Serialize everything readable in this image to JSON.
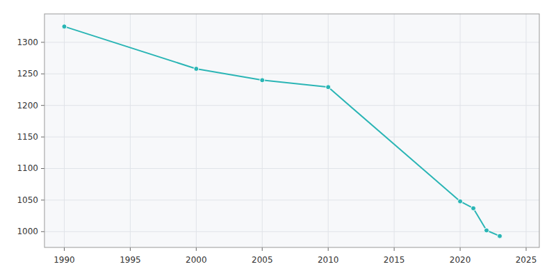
{
  "chart_data": {
    "type": "line",
    "x": [
      1990,
      2000,
      2005,
      2010,
      2020,
      2021,
      2022,
      2023
    ],
    "values": [
      1325,
      1258,
      1240,
      1229,
      1048,
      1037,
      1002,
      993
    ],
    "color": "#2ab5b5",
    "marker": "circle",
    "xlim": [
      1988.5,
      2026
    ],
    "ylim": [
      975,
      1345
    ],
    "xticks": [
      1990,
      1995,
      2000,
      2005,
      2010,
      2015,
      2020,
      2025
    ],
    "yticks": [
      1000,
      1050,
      1100,
      1150,
      1200,
      1250,
      1300
    ],
    "grid": true
  }
}
